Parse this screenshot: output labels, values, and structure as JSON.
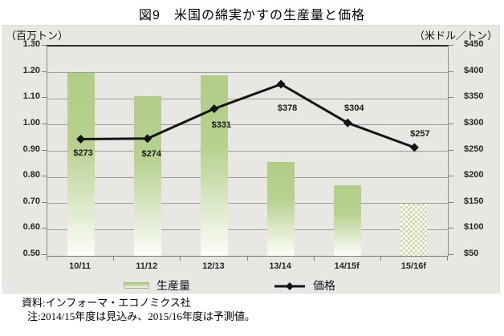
{
  "title": "図9　米国の綿実かすの生産量と価格",
  "footer": {
    "source": "資料:インフォーマ・エコノミクス社",
    "note": "注:2014/15年度は見込み、2015/16年度は予測値。"
  },
  "colors": {
    "chart_background": "#e8e7e4",
    "gridline": "#9d9d9a",
    "axis": "#82817c",
    "bar_green": "#b1cd88",
    "forecast_checker_green": "#cbdfa6",
    "price_line": "#141414"
  },
  "chart_data": {
    "type": "bar",
    "subtype": "bar+line combo, dual axis",
    "categories": [
      "10/11",
      "11/12",
      "12/13",
      "13/14",
      "14/15f",
      "15/16f"
    ],
    "series": [
      {
        "name": "生産量",
        "type": "bar",
        "axis": "left",
        "values": [
          1.2,
          1.11,
          1.19,
          0.86,
          0.77,
          0.7
        ],
        "forecast_pattern_index": 5
      },
      {
        "name": "価格",
        "type": "line",
        "axis": "right",
        "values": [
          273,
          274,
          331,
          378,
          304,
          257
        ],
        "point_labels": [
          "$273",
          "$274",
          "$331",
          "$378",
          "$304",
          "$257"
        ],
        "label_offsets": [
          {
            "dx": 3,
            "dy": 12
          },
          {
            "dx": 5,
            "dy": 13
          },
          {
            "dx": 9,
            "dy": 14
          },
          {
            "dx": 8,
            "dy": 24
          },
          {
            "dx": 8,
            "dy": -24
          },
          {
            "dx": 7,
            "dy": -23
          }
        ]
      }
    ],
    "left_axis": {
      "unit": "（百万トン）",
      "min": 0.5,
      "max": 1.3,
      "step": 0.1,
      "ticks": [
        "1.30",
        "1.20",
        "1.10",
        "1.00",
        "0.90",
        "0.80",
        "0.70",
        "0.60",
        "0.50"
      ]
    },
    "right_axis": {
      "unit": "（米ドル／トン）",
      "min": 50,
      "max": 450,
      "step": 50,
      "ticks": [
        "$450",
        "$400",
        "$350",
        "$300",
        "$250",
        "$200",
        "$150",
        "$100",
        "$50"
      ]
    },
    "legend": {
      "position": "bottom",
      "items": [
        "生産量",
        "価格"
      ]
    },
    "grid": true
  }
}
